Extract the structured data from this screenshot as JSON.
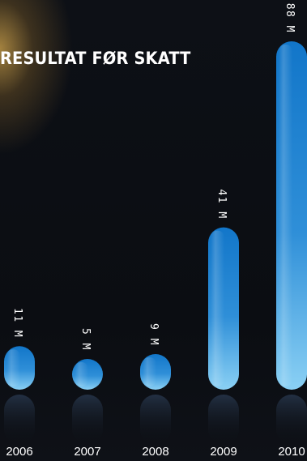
{
  "chart_data": {
    "type": "bar",
    "title": "RESULTAT FØR SKATT",
    "categories": [
      "2006",
      "2007",
      "2008",
      "2009",
      "2010"
    ],
    "values": [
      11,
      5,
      9,
      41,
      88
    ],
    "value_labels": [
      "11 M",
      "5 M",
      "9 M",
      "41 M",
      "88 M"
    ],
    "unit": "M",
    "ylim": [
      0,
      88
    ],
    "grid": false,
    "legend": "none",
    "colors": {
      "bar_top": "#1276c9",
      "bar_bottom": "#8ad0f4",
      "label": "#ffffff",
      "reflection": "#1b2533"
    }
  }
}
